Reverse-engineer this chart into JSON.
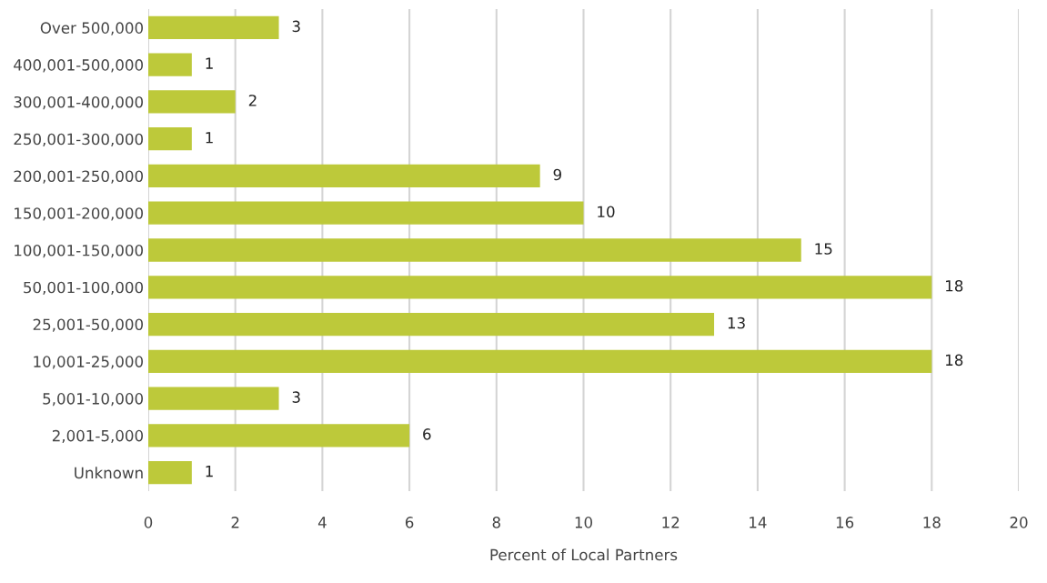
{
  "chart_data": {
    "type": "bar",
    "orientation": "horizontal",
    "xlabel": "Percent of Local Partners",
    "categories": [
      "Over 500,000",
      "400,001-500,000",
      "300,001-400,000",
      "250,001-300,000",
      "200,001-250,000",
      "150,001-200,000",
      "100,001-150,000",
      "50,001-100,000",
      "25,001-50,000",
      "10,001-25,000",
      "5,001-10,000",
      "2,001-5,000",
      "Unknown"
    ],
    "values": [
      3,
      1,
      2,
      1,
      9,
      10,
      15,
      18,
      13,
      18,
      3,
      6,
      1
    ],
    "color": "#bdc93a",
    "xlim": [
      0,
      20
    ],
    "xticks": [
      0,
      2,
      4,
      6,
      8,
      10,
      12,
      14,
      16,
      18,
      20
    ],
    "grid": "x",
    "data_labels": true,
    "legend": false
  }
}
